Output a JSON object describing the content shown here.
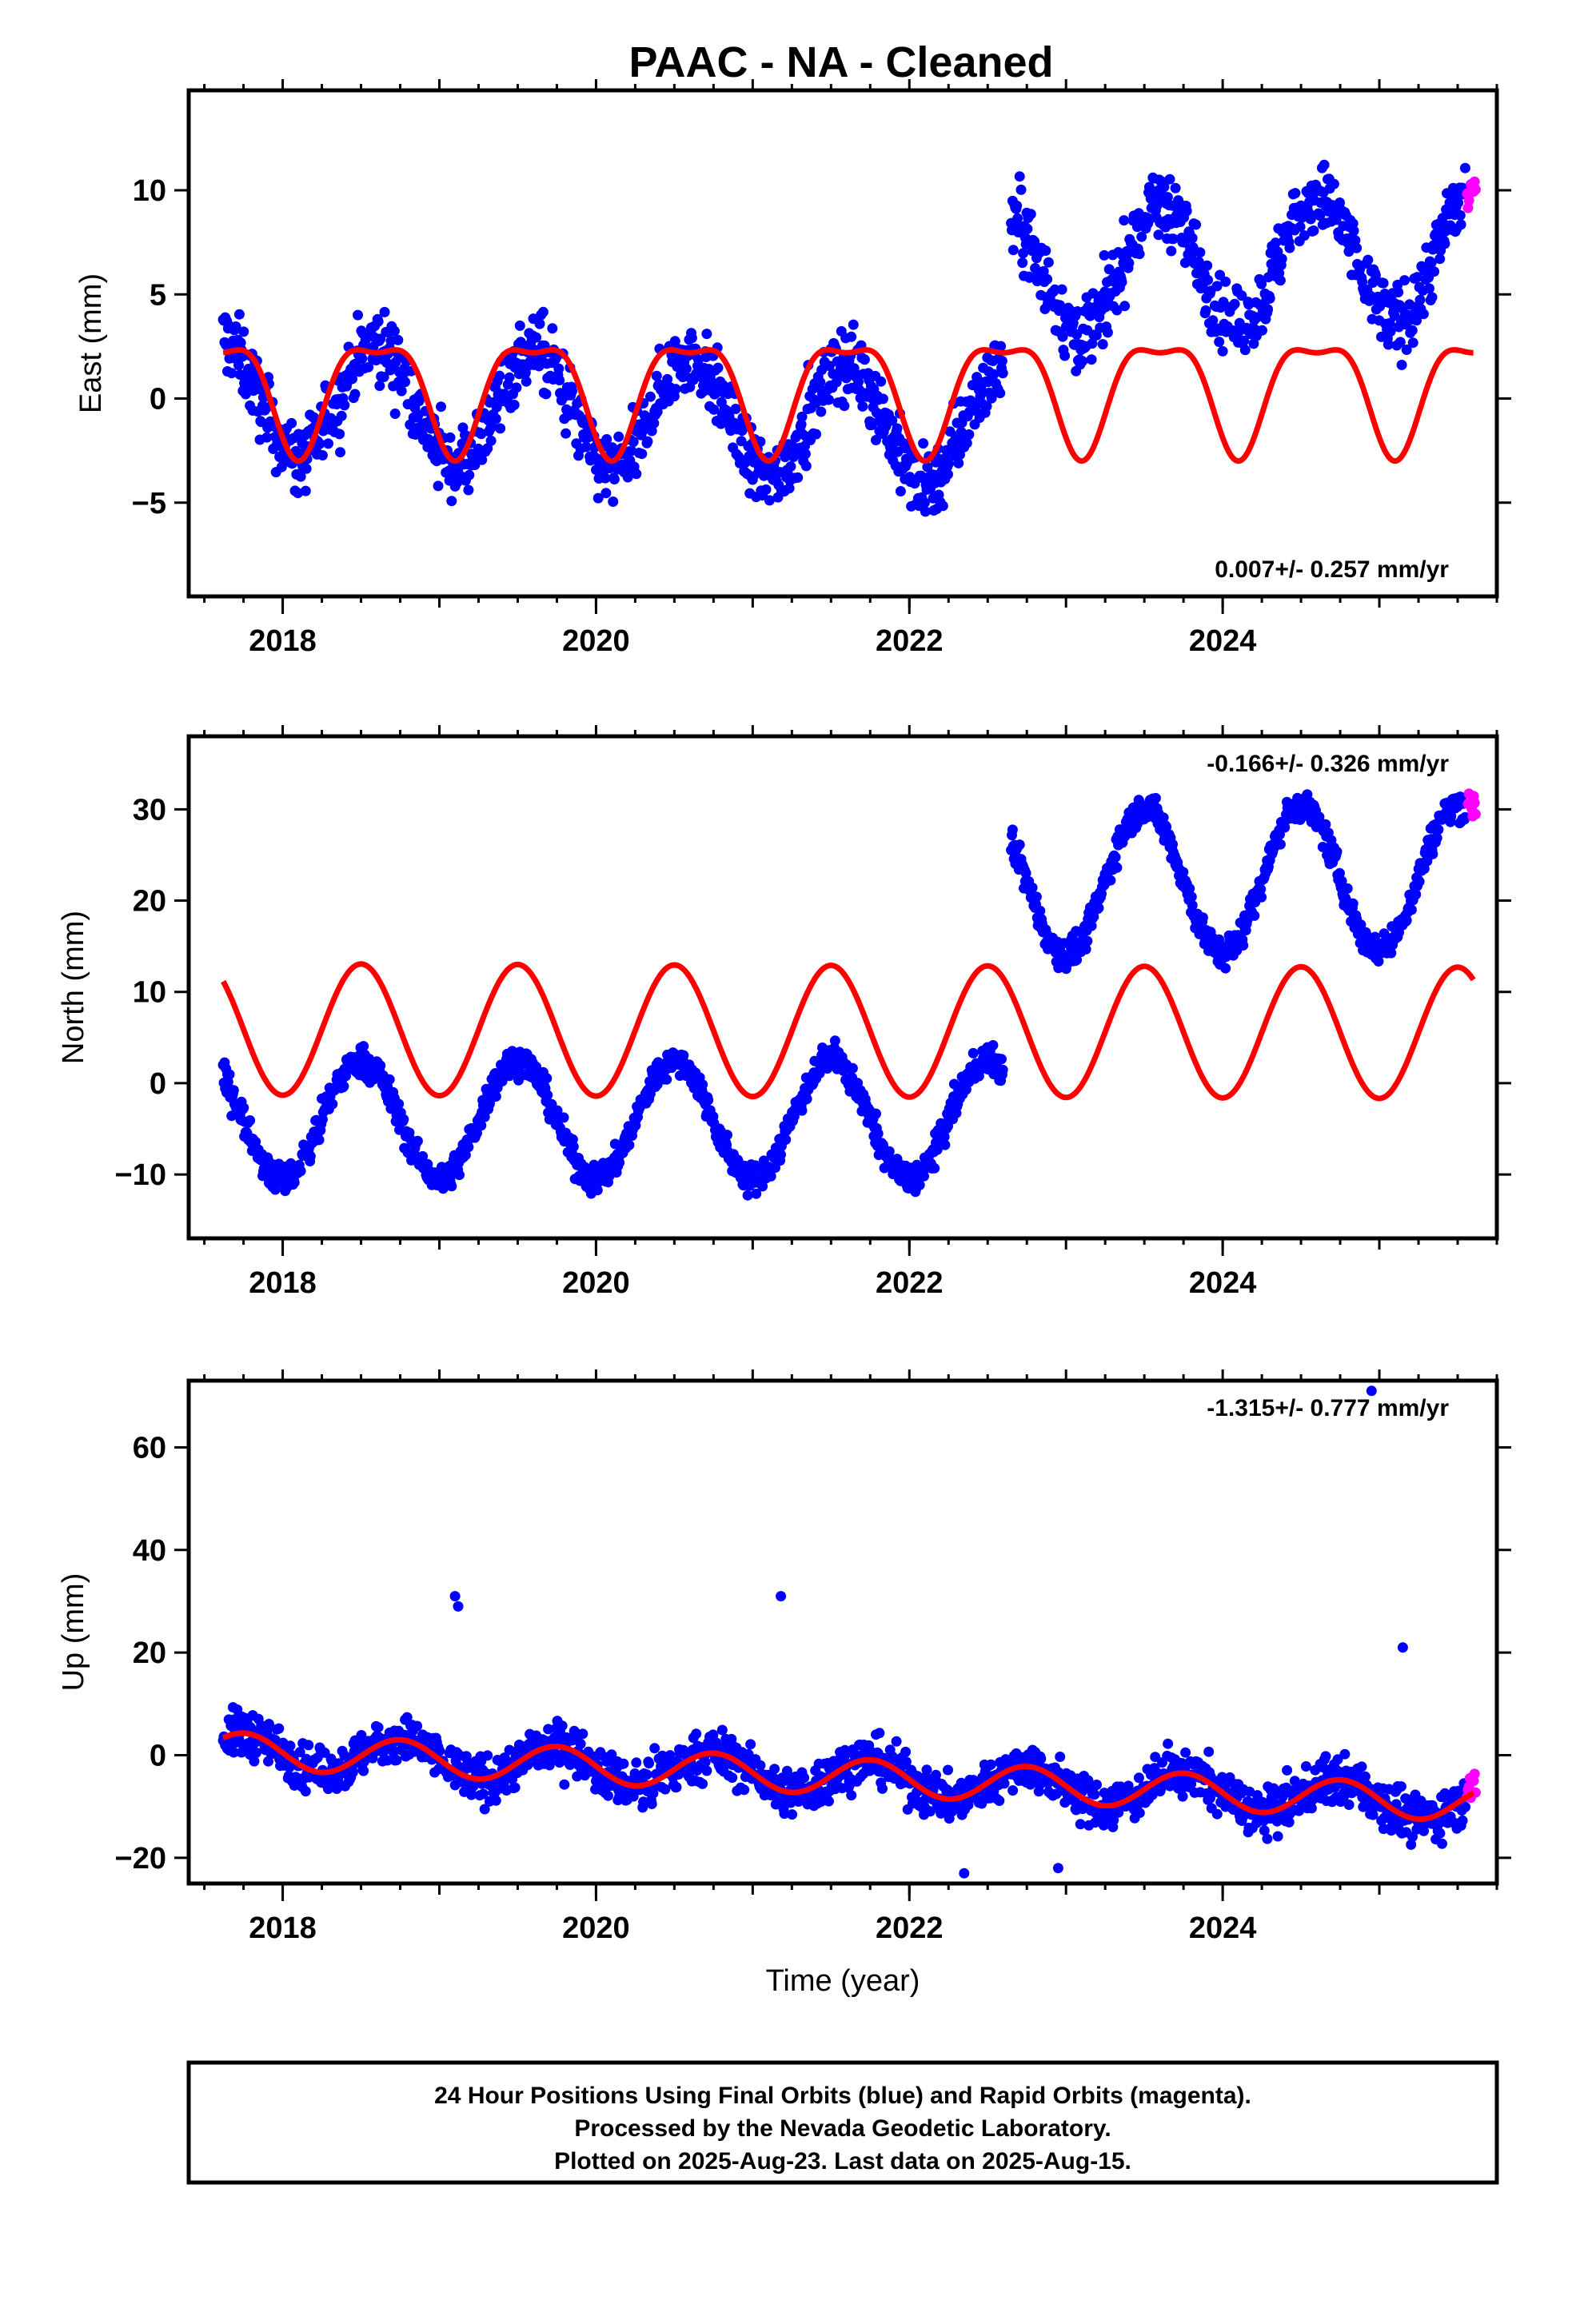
{
  "chart_title": "PAAC  - NA - Cleaned",
  "footer": {
    "line1": "24 Hour Positions Using Final Orbits (blue) and Rapid Orbits (magenta).",
    "line2": "Processed by the Nevada Geodetic Laboratory.",
    "line3": "Plotted on 2025-Aug-23. Last data on 2025-Aug-15."
  },
  "colors": {
    "final": "#0000ff",
    "rapid": "#ff00ff",
    "model": "#ff0000",
    "frame": "#000000"
  },
  "chart_data": [
    {
      "type": "scatter",
      "title": "PAAC  - NA - Cleaned",
      "ylabel": "East (mm)",
      "xlabel": "",
      "xlim": [
        2017.4,
        2025.75
      ],
      "ylim": [
        -9.5,
        14.8
      ],
      "xticks": [
        2018,
        2020,
        2022,
        2024
      ],
      "yticks": [
        -5,
        0,
        5,
        10
      ],
      "rate_text": "0.007+/- 0.257 mm/yr",
      "rate_position": "bottom-right",
      "series": [
        {
          "name": "Final Orbits",
          "color": "#0000ff",
          "noise": 1.6,
          "segments": [
            {
              "x0": 2017.62,
              "x1": 2022.6,
              "offset": 0.1,
              "slope": -0.3,
              "amp": 2.8,
              "phase": 2018.6
            },
            {
              "x0": 2022.65,
              "x1": 2025.55,
              "offset": 4.5,
              "slope": 0.3,
              "amp": 3.0,
              "phase": 2018.6
            }
          ]
        },
        {
          "name": "Rapid Orbits",
          "color": "#ff00ff",
          "noise": 1.0,
          "segments": [
            {
              "x0": 2025.56,
              "x1": 2025.62,
              "offset": 10.0,
              "slope": 0,
              "amp": 0,
              "phase": 2018.6
            }
          ]
        }
      ],
      "model": {
        "x0": 2017.62,
        "x1": 2025.6,
        "offset": 0.5,
        "amp1": 2.6,
        "phase1": 2018.6,
        "amp2": 0.9,
        "phase2": 2018.35
      }
    },
    {
      "type": "scatter",
      "title": "",
      "ylabel": "North (mm)",
      "xlabel": "",
      "xlim": [
        2017.4,
        2025.75
      ],
      "ylim": [
        -17,
        38
      ],
      "xticks": [
        2018,
        2020,
        2022,
        2024
      ],
      "yticks": [
        -10,
        0,
        10,
        20,
        30
      ],
      "rate_text": "-0.166+/- 0.326 mm/yr",
      "rate_position": "top-right",
      "series": [
        {
          "name": "Final Orbits",
          "color": "#0000ff",
          "noise": 1.5,
          "segments": [
            {
              "x0": 2017.62,
              "x1": 2022.6,
              "offset": -4.0,
              "slope": 0,
              "amp": 6.5,
              "phase": 2018.5
            },
            {
              "x0": 2022.65,
              "x1": 2025.55,
              "offset": 21.0,
              "slope": 0.2,
              "amp": 8.0,
              "phase": 2018.5
            }
          ]
        },
        {
          "name": "Rapid Orbits",
          "color": "#ff00ff",
          "noise": 1.5,
          "segments": [
            {
              "x0": 2025.56,
              "x1": 2025.62,
              "offset": 30.5,
              "slope": 0,
              "amp": 0,
              "phase": 2018.5
            }
          ]
        }
      ],
      "model": {
        "x0": 2017.62,
        "x1": 2025.6,
        "offset": 5.9,
        "slope": -0.05,
        "amp1": 7.2,
        "phase1": 2018.5,
        "amp2": 0,
        "phase2": 2018.5
      }
    },
    {
      "type": "scatter",
      "title": "",
      "ylabel": "Up (mm)",
      "xlabel": "Time (year)",
      "xlim": [
        2017.4,
        2025.75
      ],
      "ylim": [
        -25,
        73
      ],
      "xticks": [
        2018,
        2020,
        2022,
        2024
      ],
      "yticks": [
        -20,
        0,
        20,
        40,
        60
      ],
      "rate_text": "-1.315+/- 0.777 mm/yr",
      "rate_position": "top-right",
      "series": [
        {
          "name": "Final Orbits",
          "color": "#0000ff",
          "noise": 4.2,
          "segments": [
            {
              "x0": 2017.62,
              "x1": 2025.55,
              "offset": 1.0,
              "slope": -1.3,
              "amp": 3.5,
              "phase": 2017.75
            }
          ]
        },
        {
          "name": "Rapid Orbits",
          "color": "#ff00ff",
          "noise": 5.0,
          "segments": [
            {
              "x0": 2025.56,
              "x1": 2025.62,
              "offset": -4.0,
              "slope": 0,
              "amp": 0,
              "phase": 2017.75
            }
          ]
        }
      ],
      "outliers": [
        [
          2019.1,
          31
        ],
        [
          2019.12,
          29
        ],
        [
          2021.18,
          31
        ],
        [
          2024.95,
          71
        ],
        [
          2025.15,
          21
        ],
        [
          2022.35,
          -23
        ],
        [
          2022.95,
          -22
        ]
      ],
      "model": {
        "x0": 2017.62,
        "x1": 2025.6,
        "offset": 1.0,
        "slope": -1.3,
        "amp1": 3.5,
        "phase1": 2017.75,
        "amp2": 0,
        "phase2": 2017.75
      }
    }
  ]
}
